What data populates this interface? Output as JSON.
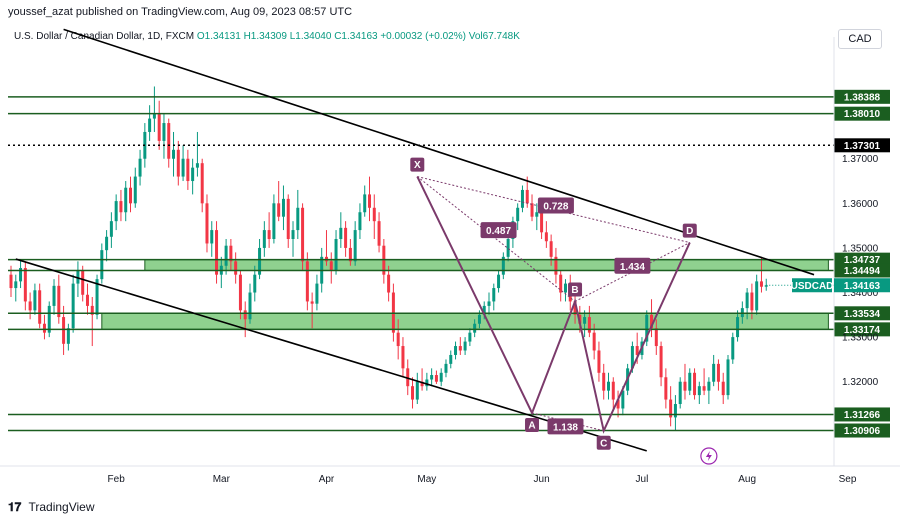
{
  "header": {
    "published": "youssef_azat published on TradingView.com, Aug 09, 2023 08:57 UTC",
    "symbol": "U.S. Dollar / Canadian Dollar, 1D, FXCM",
    "ohlc": "O1.34131 H1.34309 L1.34040 C1.34163 +0.00032 (+0.02%)",
    "volume": "Vol67.748K",
    "currency": "CAD"
  },
  "footer": {
    "brand": "TradingView"
  },
  "colors": {
    "up": "#089981",
    "down": "#f23645",
    "pattern": "#7b3a6b",
    "zone": "#8fd18f",
    "level": "#1b5e20",
    "trend": "#000000"
  },
  "chart_data": {
    "type": "candlestick",
    "symbol_tag": "USDCAD",
    "last_price": 1.34163,
    "ylim": [
      1.302,
      1.3955
    ],
    "xaxis": {
      "ticks": [
        "Feb",
        "Mar",
        "Apr",
        "May",
        "Jun",
        "Jul",
        "Aug",
        "Sep"
      ],
      "tick_days": [
        41,
        63,
        85,
        106,
        130,
        151,
        173,
        194
      ]
    },
    "price_ticks": [
      1.36,
      1.35,
      1.34,
      1.33,
      1.32
    ],
    "levels": [
      {
        "value": 1.38388,
        "label": "1.38388",
        "style": "solid"
      },
      {
        "value": 1.3801,
        "label": "1.38010",
        "style": "solid"
      },
      {
        "value": 1.37301,
        "label": "1.37301",
        "style": "dotted"
      },
      {
        "value": 1.34737,
        "label": "1.34737",
        "style": "solid"
      },
      {
        "value": 1.34494,
        "label": "1.34494",
        "style": "solid"
      },
      {
        "value": 1.33534,
        "label": "1.33534",
        "style": "solid"
      },
      {
        "value": 1.33174,
        "label": "1.33174",
        "style": "solid"
      },
      {
        "value": 1.31266,
        "label": "1.31266",
        "style": "solid"
      },
      {
        "value": 1.30906,
        "label": "1.30906",
        "style": "solid"
      }
    ],
    "axis_extra_ticks": [
      "1.37000"
    ],
    "zones": [
      {
        "from_day": 47,
        "to_day": 190,
        "low": 1.34494,
        "high": 1.34737
      },
      {
        "from_day": 38,
        "to_day": 190,
        "low": 1.33174,
        "high": 1.33534
      }
    ],
    "trendlines": [
      {
        "from": [
          30,
          1.399
        ],
        "to": [
          187,
          1.344
        ]
      },
      {
        "from": [
          20,
          1.3475
        ],
        "to": [
          152,
          1.3045
        ]
      }
    ],
    "harmonic": {
      "points": [
        {
          "label": "X",
          "day": 104,
          "price": 1.366
        },
        {
          "label": "A",
          "day": 128,
          "price": 1.313
        },
        {
          "label": "B",
          "day": 137,
          "price": 1.338
        },
        {
          "label": "C",
          "day": 143,
          "price": 1.309
        },
        {
          "label": "D",
          "day": 161,
          "price": 1.3512
        }
      ],
      "ratios": [
        {
          "value": "0.487",
          "day": 121,
          "price": 1.354
        },
        {
          "value": "0.728",
          "day": 133,
          "price": 1.3595
        },
        {
          "value": "1.434",
          "day": 149,
          "price": 1.346
        },
        {
          "value": "1.138",
          "day": 135,
          "price": 1.31
        }
      ]
    },
    "candles": [
      [
        1.344,
        1.346,
        1.339,
        1.341
      ],
      [
        1.341,
        1.344,
        1.338,
        1.3425
      ],
      [
        1.3425,
        1.3475,
        1.341,
        1.3455
      ],
      [
        1.3455,
        1.347,
        1.336,
        1.338
      ],
      [
        1.338,
        1.34,
        1.334,
        1.336
      ],
      [
        1.336,
        1.342,
        1.335,
        1.3405
      ],
      [
        1.3405,
        1.342,
        1.332,
        1.333
      ],
      [
        1.333,
        1.335,
        1.3295,
        1.331
      ],
      [
        1.331,
        1.338,
        1.33,
        1.337
      ],
      [
        1.337,
        1.343,
        1.335,
        1.3415
      ],
      [
        1.3415,
        1.344,
        1.333,
        1.3345
      ],
      [
        1.3345,
        1.337,
        1.326,
        1.3285
      ],
      [
        1.3285,
        1.333,
        1.327,
        1.332
      ],
      [
        1.332,
        1.344,
        1.331,
        1.342
      ],
      [
        1.342,
        1.347,
        1.339,
        1.345
      ],
      [
        1.345,
        1.346,
        1.338,
        1.3395
      ],
      [
        1.3395,
        1.342,
        1.335,
        1.337
      ],
      [
        1.337,
        1.339,
        1.328,
        1.335
      ],
      [
        1.335,
        1.344,
        1.334,
        1.343
      ],
      [
        1.343,
        1.351,
        1.342,
        1.3495
      ],
      [
        1.3495,
        1.354,
        1.347,
        1.3525
      ],
      [
        1.3525,
        1.358,
        1.35,
        1.356
      ],
      [
        1.356,
        1.362,
        1.354,
        1.3605
      ],
      [
        1.3605,
        1.363,
        1.356,
        1.358
      ],
      [
        1.358,
        1.365,
        1.356,
        1.3635
      ],
      [
        1.3635,
        1.366,
        1.358,
        1.36
      ],
      [
        1.36,
        1.368,
        1.359,
        1.366
      ],
      [
        1.366,
        1.372,
        1.364,
        1.37
      ],
      [
        1.37,
        1.378,
        1.368,
        1.376
      ],
      [
        1.376,
        1.382,
        1.374,
        1.379
      ],
      [
        1.379,
        1.3862,
        1.376,
        1.38
      ],
      [
        1.38,
        1.383,
        1.372,
        1.374
      ],
      [
        1.374,
        1.38,
        1.37,
        1.378
      ],
      [
        1.378,
        1.379,
        1.368,
        1.37
      ],
      [
        1.37,
        1.376,
        1.366,
        1.372
      ],
      [
        1.372,
        1.374,
        1.364,
        1.366
      ],
      [
        1.366,
        1.373,
        1.365,
        1.37
      ],
      [
        1.37,
        1.372,
        1.363,
        1.365
      ],
      [
        1.365,
        1.37,
        1.362,
        1.368
      ],
      [
        1.368,
        1.376,
        1.366,
        1.369
      ],
      [
        1.369,
        1.37,
        1.358,
        1.36
      ],
      [
        1.36,
        1.362,
        1.349,
        1.351
      ],
      [
        1.351,
        1.356,
        1.348,
        1.354
      ],
      [
        1.354,
        1.356,
        1.342,
        1.344
      ],
      [
        1.344,
        1.348,
        1.341,
        1.346
      ],
      [
        1.346,
        1.352,
        1.344,
        1.3505
      ],
      [
        1.3505,
        1.352,
        1.345,
        1.347
      ],
      [
        1.347,
        1.349,
        1.342,
        1.344
      ],
      [
        1.344,
        1.345,
        1.334,
        1.336
      ],
      [
        1.336,
        1.338,
        1.33,
        1.334
      ],
      [
        1.334,
        1.342,
        1.333,
        1.34
      ],
      [
        1.34,
        1.346,
        1.338,
        1.344
      ],
      [
        1.344,
        1.352,
        1.343,
        1.35
      ],
      [
        1.35,
        1.356,
        1.348,
        1.354
      ],
      [
        1.354,
        1.358,
        1.35,
        1.352
      ],
      [
        1.352,
        1.362,
        1.351,
        1.36
      ],
      [
        1.36,
        1.365,
        1.356,
        1.357
      ],
      [
        1.357,
        1.364,
        1.354,
        1.361
      ],
      [
        1.361,
        1.362,
        1.35,
        1.352
      ],
      [
        1.352,
        1.356,
        1.348,
        1.354
      ],
      [
        1.354,
        1.363,
        1.352,
        1.359
      ],
      [
        1.359,
        1.36,
        1.345,
        1.347
      ],
      [
        1.347,
        1.349,
        1.336,
        1.338
      ],
      [
        1.338,
        1.34,
        1.332,
        1.3375
      ],
      [
        1.3375,
        1.344,
        1.336,
        1.342
      ],
      [
        1.342,
        1.35,
        1.34,
        1.348
      ],
      [
        1.348,
        1.354,
        1.346,
        1.347
      ],
      [
        1.347,
        1.349,
        1.342,
        1.345
      ],
      [
        1.345,
        1.354,
        1.344,
        1.352
      ],
      [
        1.352,
        1.358,
        1.35,
        1.3545
      ],
      [
        1.3545,
        1.356,
        1.348,
        1.35
      ],
      [
        1.35,
        1.352,
        1.346,
        1.347
      ],
      [
        1.347,
        1.356,
        1.346,
        1.354
      ],
      [
        1.354,
        1.36,
        1.352,
        1.358
      ],
      [
        1.358,
        1.364,
        1.357,
        1.362
      ],
      [
        1.362,
        1.366,
        1.356,
        1.359
      ],
      [
        1.359,
        1.362,
        1.352,
        1.356
      ],
      [
        1.356,
        1.358,
        1.349,
        1.3505
      ],
      [
        1.3505,
        1.352,
        1.342,
        1.344
      ],
      [
        1.344,
        1.346,
        1.338,
        1.34
      ],
      [
        1.34,
        1.342,
        1.329,
        1.331
      ],
      [
        1.331,
        1.334,
        1.325,
        1.328
      ],
      [
        1.328,
        1.33,
        1.321,
        1.323
      ],
      [
        1.323,
        1.325,
        1.317,
        1.319
      ],
      [
        1.319,
        1.321,
        1.314,
        1.316
      ],
      [
        1.316,
        1.322,
        1.315,
        1.32
      ],
      [
        1.32,
        1.323,
        1.318,
        1.319
      ],
      [
        1.319,
        1.322,
        1.318,
        1.3205
      ],
      [
        1.3205,
        1.323,
        1.319,
        1.3215
      ],
      [
        1.3215,
        1.3225,
        1.3195,
        1.32
      ],
      [
        1.32,
        1.323,
        1.319,
        1.322
      ],
      [
        1.322,
        1.325,
        1.321,
        1.324
      ],
      [
        1.324,
        1.327,
        1.323,
        1.326
      ],
      [
        1.326,
        1.329,
        1.325,
        1.328
      ],
      [
        1.328,
        1.33,
        1.326,
        1.327
      ],
      [
        1.327,
        1.33,
        1.326,
        1.329
      ],
      [
        1.329,
        1.332,
        1.328,
        1.331
      ],
      [
        1.331,
        1.334,
        1.33,
        1.333
      ],
      [
        1.333,
        1.336,
        1.332,
        1.335
      ],
      [
        1.335,
        1.338,
        1.334,
        1.337
      ],
      [
        1.337,
        1.34,
        1.335,
        1.338
      ],
      [
        1.338,
        1.342,
        1.336,
        1.341
      ],
      [
        1.341,
        1.345,
        1.34,
        1.344
      ],
      [
        1.344,
        1.349,
        1.343,
        1.348
      ],
      [
        1.348,
        1.353,
        1.347,
        1.352
      ],
      [
        1.352,
        1.357,
        1.35,
        1.356
      ],
      [
        1.356,
        1.36,
        1.354,
        1.359
      ],
      [
        1.359,
        1.364,
        1.358,
        1.363
      ],
      [
        1.363,
        1.366,
        1.359,
        1.36
      ],
      [
        1.36,
        1.362,
        1.356,
        1.357
      ],
      [
        1.357,
        1.36,
        1.354,
        1.358
      ],
      [
        1.358,
        1.359,
        1.352,
        1.3535
      ],
      [
        1.3535,
        1.356,
        1.35,
        1.3515
      ],
      [
        1.3515,
        1.353,
        1.346,
        1.348
      ],
      [
        1.348,
        1.35,
        1.342,
        1.344
      ],
      [
        1.344,
        1.345,
        1.338,
        1.34
      ],
      [
        1.34,
        1.343,
        1.338,
        1.342
      ],
      [
        1.342,
        1.344,
        1.336,
        1.338
      ],
      [
        1.338,
        1.34,
        1.333,
        1.335
      ],
      [
        1.335,
        1.337,
        1.331,
        1.333
      ],
      [
        1.333,
        1.336,
        1.33,
        1.3345
      ],
      [
        1.3345,
        1.337,
        1.33,
        1.331
      ],
      [
        1.331,
        1.333,
        1.325,
        1.327
      ],
      [
        1.327,
        1.329,
        1.32,
        1.322
      ],
      [
        1.322,
        1.324,
        1.316,
        1.318
      ],
      [
        1.318,
        1.322,
        1.316,
        1.32
      ],
      [
        1.32,
        1.321,
        1.314,
        1.316
      ],
      [
        1.316,
        1.318,
        1.312,
        1.314
      ],
      [
        1.314,
        1.319,
        1.3125,
        1.318
      ],
      [
        1.318,
        1.324,
        1.317,
        1.323
      ],
      [
        1.323,
        1.329,
        1.322,
        1.328
      ],
      [
        1.328,
        1.331,
        1.324,
        1.326
      ],
      [
        1.326,
        1.33,
        1.325,
        1.329
      ],
      [
        1.329,
        1.336,
        1.328,
        1.335
      ],
      [
        1.335,
        1.3385,
        1.33,
        1.332
      ],
      [
        1.332,
        1.334,
        1.326,
        1.328
      ],
      [
        1.328,
        1.329,
        1.319,
        1.321
      ],
      [
        1.321,
        1.323,
        1.314,
        1.316
      ],
      [
        1.316,
        1.319,
        1.31,
        1.312
      ],
      [
        1.312,
        1.317,
        1.309,
        1.315
      ],
      [
        1.315,
        1.321,
        1.314,
        1.32
      ],
      [
        1.32,
        1.324,
        1.316,
        1.318
      ],
      [
        1.318,
        1.323,
        1.317,
        1.322
      ],
      [
        1.322,
        1.323,
        1.316,
        1.317
      ],
      [
        1.317,
        1.32,
        1.315,
        1.319
      ],
      [
        1.319,
        1.323,
        1.317,
        1.318
      ],
      [
        1.318,
        1.321,
        1.315,
        1.32
      ],
      [
        1.32,
        1.326,
        1.319,
        1.324
      ],
      [
        1.324,
        1.325,
        1.318,
        1.32
      ],
      [
        1.32,
        1.322,
        1.315,
        1.317
      ],
      [
        1.317,
        1.326,
        1.316,
        1.325
      ],
      [
        1.325,
        1.331,
        1.324,
        1.33
      ],
      [
        1.33,
        1.336,
        1.329,
        1.3345
      ],
      [
        1.3345,
        1.338,
        1.333,
        1.3365
      ],
      [
        1.3365,
        1.341,
        1.334,
        1.34
      ],
      [
        1.34,
        1.342,
        1.334,
        1.336
      ],
      [
        1.336,
        1.344,
        1.335,
        1.3425
      ],
      [
        1.3425,
        1.348,
        1.34,
        1.3413
      ],
      [
        1.34131,
        1.34309,
        1.3404,
        1.34163
      ]
    ]
  }
}
